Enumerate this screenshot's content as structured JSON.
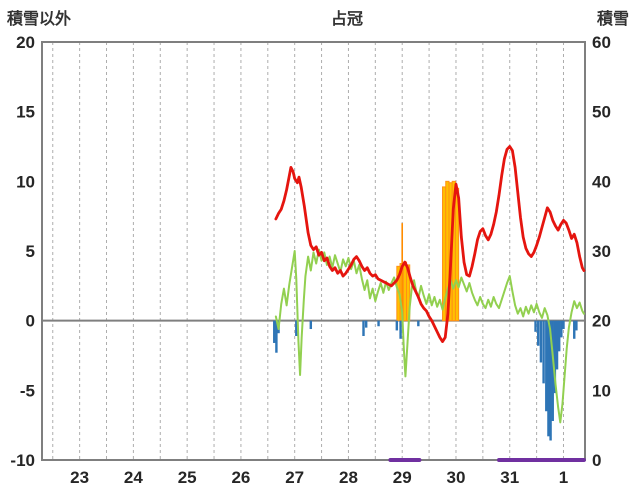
{
  "chart_data": {
    "type": "line",
    "title": "占冠",
    "left_axis": {
      "label": "積雪以外",
      "min": -10,
      "max": 20,
      "ticks": [
        20,
        15,
        10,
        5,
        0,
        -5,
        -10
      ]
    },
    "right_axis": {
      "label": "積雪",
      "min": 0,
      "max": 60,
      "ticks": [
        60,
        50,
        40,
        30,
        20,
        10,
        0
      ]
    },
    "x_axis": {
      "min": 22.3,
      "max": 32.4,
      "grid_from": 22.5,
      "grid_to": 32.0,
      "gridline_step": 0.5,
      "tick_positions": [
        23,
        24,
        25,
        26,
        27,
        28,
        29,
        30,
        31,
        32
      ],
      "tick_labels": [
        "23",
        "24",
        "25",
        "26",
        "27",
        "28",
        "29",
        "30",
        "31",
        "1"
      ]
    },
    "colors": {
      "grid": "#adadad",
      "frame": "#7f7f7f",
      "zero_line": "#7f7f7f",
      "text": "#262626"
    },
    "series": [
      {
        "name": "snowfall",
        "type": "bar",
        "axis": "left",
        "color": "#ffc000",
        "stroke": "#ff9015",
        "bar_width": 0.06,
        "points": [
          [
            28.93,
            3.9
          ],
          [
            28.99,
            4.1
          ],
          [
            29.05,
            4.2
          ],
          [
            29.11,
            4.0
          ],
          [
            29.78,
            9.6
          ],
          [
            29.84,
            10.0
          ],
          [
            29.9,
            9.9
          ],
          [
            29.96,
            10.0
          ],
          [
            30.02,
            9.5
          ]
        ]
      },
      {
        "name": "snowfall-peak",
        "type": "bar",
        "axis": "left",
        "color": "#ff8c00",
        "bar_width": 0.03,
        "points": [
          [
            29.0,
            7.0
          ]
        ]
      },
      {
        "name": "precipitation",
        "type": "bar",
        "axis": "left",
        "color": "#2e75b6",
        "bar_width": 0.045,
        "points": [
          [
            26.62,
            -1.6
          ],
          [
            26.66,
            -2.3
          ],
          [
            26.7,
            -0.9
          ],
          [
            27.03,
            -1.1
          ],
          [
            27.3,
            -0.6
          ],
          [
            28.28,
            -1.1
          ],
          [
            28.33,
            -0.5
          ],
          [
            28.56,
            -0.4
          ],
          [
            28.9,
            -0.7
          ],
          [
            28.97,
            -1.3
          ],
          [
            29.3,
            -0.4
          ],
          [
            31.48,
            -0.8
          ],
          [
            31.53,
            -1.8
          ],
          [
            31.58,
            -3.0
          ],
          [
            31.63,
            -4.5
          ],
          [
            31.68,
            -6.5
          ],
          [
            31.72,
            -8.3
          ],
          [
            31.76,
            -8.6
          ],
          [
            31.8,
            -7.2
          ],
          [
            31.84,
            -5.2
          ],
          [
            31.88,
            -3.5
          ],
          [
            31.92,
            -2.2
          ],
          [
            31.96,
            -1.2
          ],
          [
            32.0,
            -0.6
          ],
          [
            32.2,
            -1.3
          ],
          [
            32.24,
            -0.7
          ]
        ]
      },
      {
        "name": "wind",
        "type": "line",
        "axis": "left",
        "color": "#92d050",
        "width": 2,
        "points": [
          [
            26.65,
            0.3
          ],
          [
            26.7,
            -0.6
          ],
          [
            26.75,
            1.2
          ],
          [
            26.8,
            2.3
          ],
          [
            26.85,
            1.1
          ],
          [
            26.9,
            2.6
          ],
          [
            26.95,
            3.8
          ],
          [
            27.0,
            5.0
          ],
          [
            27.03,
            3.0
          ],
          [
            27.07,
            -1.5
          ],
          [
            27.1,
            -3.9
          ],
          [
            27.13,
            -1.2
          ],
          [
            27.17,
            1.5
          ],
          [
            27.2,
            3.2
          ],
          [
            27.25,
            4.6
          ],
          [
            27.3,
            3.6
          ],
          [
            27.35,
            4.9
          ],
          [
            27.4,
            4.1
          ],
          [
            27.45,
            5.1
          ],
          [
            27.5,
            4.3
          ],
          [
            27.55,
            4.9
          ],
          [
            27.6,
            4.0
          ],
          [
            27.65,
            4.6
          ],
          [
            27.7,
            3.8
          ],
          [
            27.75,
            4.7
          ],
          [
            27.8,
            4.1
          ],
          [
            27.85,
            3.5
          ],
          [
            27.9,
            4.4
          ],
          [
            27.95,
            3.9
          ],
          [
            28.0,
            4.5
          ],
          [
            28.05,
            3.7
          ],
          [
            28.1,
            4.3
          ],
          [
            28.15,
            3.4
          ],
          [
            28.2,
            4.0
          ],
          [
            28.25,
            3.0
          ],
          [
            28.3,
            2.2
          ],
          [
            28.35,
            2.9
          ],
          [
            28.4,
            1.6
          ],
          [
            28.45,
            2.3
          ],
          [
            28.5,
            1.4
          ],
          [
            28.55,
            2.1
          ],
          [
            28.6,
            2.7
          ],
          [
            28.65,
            2.0
          ],
          [
            28.7,
            2.8
          ],
          [
            28.75,
            2.2
          ],
          [
            28.8,
            2.7
          ],
          [
            28.85,
            3.1
          ],
          [
            28.9,
            2.4
          ],
          [
            28.95,
            1.9
          ],
          [
            29.0,
            0.6
          ],
          [
            29.03,
            -2.0
          ],
          [
            29.06,
            -4.0
          ],
          [
            29.1,
            -1.5
          ],
          [
            29.14,
            1.0
          ],
          [
            29.18,
            2.4
          ],
          [
            29.22,
            2.9
          ],
          [
            29.26,
            2.1
          ],
          [
            29.3,
            1.6
          ],
          [
            29.35,
            2.5
          ],
          [
            29.4,
            1.8
          ],
          [
            29.45,
            1.2
          ],
          [
            29.5,
            1.9
          ],
          [
            29.55,
            1.1
          ],
          [
            29.6,
            1.7
          ],
          [
            29.65,
            1.0
          ],
          [
            29.7,
            1.5
          ],
          [
            29.75,
            0.8
          ],
          [
            29.8,
            1.6
          ],
          [
            29.85,
            2.3
          ],
          [
            29.9,
            2.9
          ],
          [
            29.95,
            2.3
          ],
          [
            30.0,
            2.9
          ],
          [
            30.05,
            2.4
          ],
          [
            30.1,
            3.1
          ],
          [
            30.15,
            2.6
          ],
          [
            30.2,
            2.1
          ],
          [
            30.25,
            2.7
          ],
          [
            30.3,
            2.0
          ],
          [
            30.35,
            1.5
          ],
          [
            30.4,
            1.1
          ],
          [
            30.45,
            1.7
          ],
          [
            30.5,
            1.2
          ],
          [
            30.55,
            0.9
          ],
          [
            30.6,
            1.5
          ],
          [
            30.65,
            1.0
          ],
          [
            30.7,
            1.7
          ],
          [
            30.75,
            1.2
          ],
          [
            30.8,
            0.9
          ],
          [
            30.85,
            1.5
          ],
          [
            30.9,
            2.1
          ],
          [
            30.95,
            2.7
          ],
          [
            31.0,
            3.2
          ],
          [
            31.05,
            2.1
          ],
          [
            31.1,
            1.1
          ],
          [
            31.15,
            0.5
          ],
          [
            31.2,
            0.9
          ],
          [
            31.25,
            0.3
          ],
          [
            31.3,
            1.0
          ],
          [
            31.35,
            0.5
          ],
          [
            31.4,
            1.1
          ],
          [
            31.45,
            0.6
          ],
          [
            31.5,
            1.2
          ],
          [
            31.55,
            0.6
          ],
          [
            31.6,
            0.2
          ],
          [
            31.65,
            0.9
          ],
          [
            31.7,
            0.4
          ],
          [
            31.75,
            -0.6
          ],
          [
            31.8,
            -2.5
          ],
          [
            31.85,
            -4.5
          ],
          [
            31.9,
            -6.2
          ],
          [
            31.94,
            -7.3
          ],
          [
            31.98,
            -6.0
          ],
          [
            32.02,
            -4.0
          ],
          [
            32.06,
            -2.0
          ],
          [
            32.1,
            -0.5
          ],
          [
            32.15,
            0.6
          ],
          [
            32.2,
            1.4
          ],
          [
            32.25,
            0.9
          ],
          [
            32.3,
            1.3
          ],
          [
            32.35,
            0.7
          ],
          [
            32.38,
            0.5
          ]
        ]
      },
      {
        "name": "temperature",
        "type": "line",
        "axis": "left",
        "color": "#e5150f",
        "width": 2.8,
        "points": [
          [
            26.65,
            7.3
          ],
          [
            26.7,
            7.7
          ],
          [
            26.75,
            8.0
          ],
          [
            26.8,
            8.6
          ],
          [
            26.85,
            9.4
          ],
          [
            26.9,
            10.4
          ],
          [
            26.93,
            11.0
          ],
          [
            26.97,
            10.7
          ],
          [
            27.0,
            10.2
          ],
          [
            27.05,
            9.9
          ],
          [
            27.08,
            10.3
          ],
          [
            27.12,
            9.6
          ],
          [
            27.18,
            8.2
          ],
          [
            27.25,
            6.3
          ],
          [
            27.3,
            5.4
          ],
          [
            27.35,
            5.1
          ],
          [
            27.4,
            5.3
          ],
          [
            27.45,
            4.7
          ],
          [
            27.5,
            4.9
          ],
          [
            27.55,
            4.3
          ],
          [
            27.6,
            4.5
          ],
          [
            27.65,
            3.9
          ],
          [
            27.7,
            3.6
          ],
          [
            27.75,
            3.8
          ],
          [
            27.8,
            3.4
          ],
          [
            27.85,
            3.6
          ],
          [
            27.9,
            3.2
          ],
          [
            27.95,
            3.4
          ],
          [
            28.0,
            3.7
          ],
          [
            28.05,
            4.0
          ],
          [
            28.1,
            4.4
          ],
          [
            28.15,
            4.6
          ],
          [
            28.2,
            4.3
          ],
          [
            28.25,
            3.9
          ],
          [
            28.3,
            3.6
          ],
          [
            28.35,
            3.8
          ],
          [
            28.4,
            3.4
          ],
          [
            28.45,
            3.2
          ],
          [
            28.5,
            3.3
          ],
          [
            28.55,
            3.0
          ],
          [
            28.6,
            2.9
          ],
          [
            28.65,
            2.8
          ],
          [
            28.7,
            2.7
          ],
          [
            28.75,
            2.6
          ],
          [
            28.8,
            2.5
          ],
          [
            28.85,
            2.7
          ],
          [
            28.9,
            2.9
          ],
          [
            28.95,
            3.3
          ],
          [
            29.0,
            3.9
          ],
          [
            29.05,
            4.2
          ],
          [
            29.1,
            3.8
          ],
          [
            29.15,
            3.1
          ],
          [
            29.2,
            2.5
          ],
          [
            29.25,
            2.1
          ],
          [
            29.3,
            1.7
          ],
          [
            29.35,
            1.2
          ],
          [
            29.4,
            0.9
          ],
          [
            29.45,
            0.7
          ],
          [
            29.5,
            0.3
          ],
          [
            29.55,
            0.0
          ],
          [
            29.6,
            -0.4
          ],
          [
            29.65,
            -0.8
          ],
          [
            29.7,
            -1.2
          ],
          [
            29.75,
            -1.5
          ],
          [
            29.8,
            -1.2
          ],
          [
            29.85,
            0.5
          ],
          [
            29.9,
            4.0
          ],
          [
            29.95,
            8.0
          ],
          [
            30.0,
            9.8
          ],
          [
            30.05,
            8.8
          ],
          [
            30.1,
            6.0
          ],
          [
            30.15,
            4.2
          ],
          [
            30.2,
            3.3
          ],
          [
            30.25,
            3.2
          ],
          [
            30.3,
            3.9
          ],
          [
            30.35,
            4.8
          ],
          [
            30.4,
            5.8
          ],
          [
            30.45,
            6.4
          ],
          [
            30.5,
            6.6
          ],
          [
            30.55,
            6.1
          ],
          [
            30.6,
            5.8
          ],
          [
            30.65,
            6.2
          ],
          [
            30.7,
            6.9
          ],
          [
            30.75,
            7.8
          ],
          [
            30.8,
            9.0
          ],
          [
            30.85,
            10.4
          ],
          [
            30.9,
            11.6
          ],
          [
            30.95,
            12.3
          ],
          [
            31.0,
            12.5
          ],
          [
            31.05,
            12.2
          ],
          [
            31.1,
            11.0
          ],
          [
            31.15,
            9.2
          ],
          [
            31.2,
            7.4
          ],
          [
            31.25,
            6.0
          ],
          [
            31.3,
            5.2
          ],
          [
            31.35,
            4.8
          ],
          [
            31.4,
            4.6
          ],
          [
            31.45,
            4.9
          ],
          [
            31.5,
            5.4
          ],
          [
            31.55,
            6.0
          ],
          [
            31.6,
            6.7
          ],
          [
            31.65,
            7.4
          ],
          [
            31.7,
            8.1
          ],
          [
            31.75,
            7.8
          ],
          [
            31.8,
            7.2
          ],
          [
            31.85,
            6.8
          ],
          [
            31.9,
            6.5
          ],
          [
            31.95,
            6.9
          ],
          [
            32.0,
            7.2
          ],
          [
            32.05,
            7.0
          ],
          [
            32.1,
            6.5
          ],
          [
            32.15,
            5.9
          ],
          [
            32.2,
            6.2
          ],
          [
            32.25,
            5.6
          ],
          [
            32.3,
            4.6
          ],
          [
            32.35,
            3.8
          ],
          [
            32.38,
            3.6
          ]
        ]
      },
      {
        "name": "snow-depth",
        "type": "line",
        "axis": "right",
        "color": "#7030a0",
        "width": 4,
        "points": [
          [
            28.78,
            0
          ],
          [
            29.32,
            0
          ],
          null,
          [
            30.8,
            0
          ],
          [
            32.38,
            0
          ]
        ]
      }
    ]
  }
}
